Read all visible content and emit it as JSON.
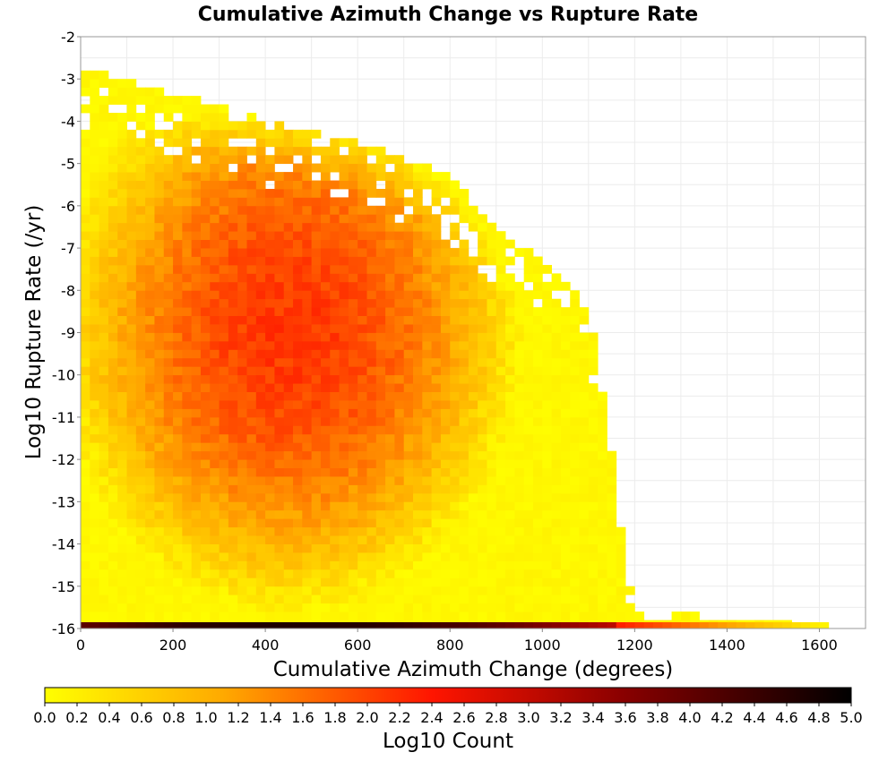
{
  "chart_data": {
    "type": "heatmap",
    "title": "Cumulative Azimuth Change vs Rupture Rate",
    "xlabel": "Cumulative Azimuth Change (degrees)",
    "ylabel": "Log10 Rupture Rate (/yr)",
    "xlim": [
      0,
      1700
    ],
    "ylim": [
      -16,
      -2
    ],
    "x_ticks": [
      0,
      200,
      400,
      600,
      800,
      1000,
      1200,
      1400,
      1600
    ],
    "y_ticks": [
      -2,
      -3,
      -4,
      -5,
      -6,
      -7,
      -8,
      -9,
      -10,
      -11,
      -12,
      -13,
      -14,
      -15,
      -16
    ],
    "grid": true,
    "bin_width_x": 20,
    "bin_height_y": 0.2,
    "density_summary": {
      "peak_log10_count_approx": 2.1,
      "peak_location": {
        "x": 450,
        "y": -9
      },
      "bottom_row_y": -16,
      "bottom_row_peak_log10_count_approx": 4.7,
      "bottom_row_peak_x": 450
    },
    "boundary": [
      {
        "x": 0,
        "y_top": -2.7
      },
      {
        "x": 200,
        "y_top": -3.3
      },
      {
        "x": 400,
        "y_top": -4.0
      },
      {
        "x": 600,
        "y_top": -4.5
      },
      {
        "x": 800,
        "y_top": -5.3
      },
      {
        "x": 900,
        "y_top": -6.6
      },
      {
        "x": 1000,
        "y_top": -7.3
      },
      {
        "x": 1100,
        "y_top": -8.3
      },
      {
        "x": 1200,
        "y_top": -15.5
      },
      {
        "x": 1620,
        "y_top": -16
      }
    ],
    "colorbar": {
      "label": "Log10 Count",
      "range": [
        0,
        5
      ],
      "ticks": [
        "0.0",
        "0.2",
        "0.4",
        "0.6",
        "0.8",
        "1.0",
        "1.2",
        "1.4",
        "1.6",
        "1.8",
        "2.0",
        "2.2",
        "2.4",
        "2.6",
        "2.8",
        "3.0",
        "3.2",
        "3.4",
        "3.6",
        "3.8",
        "4.0",
        "4.2",
        "4.4",
        "4.6",
        "4.8",
        "5.0"
      ],
      "colors": [
        "#ffff00",
        "#ff6a00",
        "#ff0000",
        "#7a0000",
        "#000000"
      ]
    }
  }
}
